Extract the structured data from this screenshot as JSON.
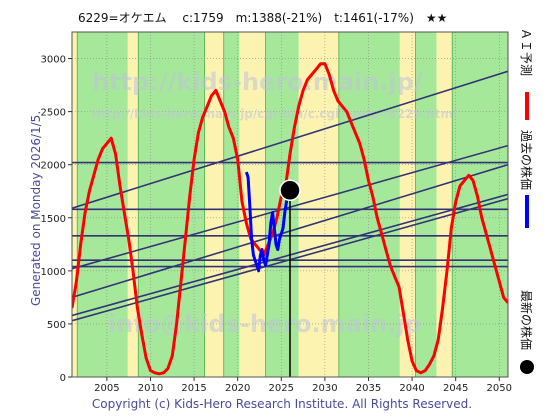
{
  "chart_data": {
    "type": "line",
    "title": "6229=オケエム　 c:1759　m:1388(-21%)　t:1461(-17%)　★★",
    "side_label": "Generated on Monday 2026/1/5.",
    "copyright": "Copyright (c) Kids-Hero Research Institute. All Rights Reserved.",
    "watermarks": [
      "http://kids-hero.main.jp/",
      "http://kids-hero.main.jp/cgi-bin/c.cgi?code=6229.html",
      "info@kids-hero.main.jp"
    ],
    "xlim": [
      2001,
      2051
    ],
    "ylim": [
      0,
      3250
    ],
    "x_ticks": [
      2005,
      2010,
      2015,
      2020,
      2025,
      2030,
      2035,
      2040,
      2045,
      2050
    ],
    "y_ticks": [
      0,
      500,
      1000,
      1500,
      2000,
      2500,
      3000
    ],
    "current_marker": {
      "x": 2026.0,
      "y": 1759
    },
    "legend": [
      {
        "label": "ＡＩ予測",
        "color": "#ff0000",
        "shape": "line"
      },
      {
        "label": "過去の株価",
        "color": "#0000ff",
        "shape": "line"
      },
      {
        "label": "最新の株価",
        "color": "#000000",
        "shape": "dot"
      }
    ],
    "colors": {
      "ai_line": "#ff0000",
      "past_line": "#0000ff",
      "trend_lines": "#333377",
      "band_green": "#a6e89a",
      "band_yellow": "#fdf3b0",
      "band_edge": "#2f9a2f"
    },
    "series": [
      {
        "name": "ＡＩ予測",
        "x": [
          2001.0,
          2001.5,
          2002.0,
          2002.5,
          2003.0,
          2003.5,
          2004.0,
          2004.5,
          2005.0,
          2005.5,
          2006.0,
          2006.5,
          2007.0,
          2007.5,
          2008.0,
          2008.5,
          2009.0,
          2009.5,
          2010.0,
          2010.5,
          2011.0,
          2011.5,
          2012.0,
          2012.5,
          2013.0,
          2013.5,
          2014.0,
          2014.5,
          2015.0,
          2015.5,
          2016.0,
          2016.5,
          2017.0,
          2017.5,
          2018.0,
          2018.5,
          2019.0,
          2019.5,
          2020.0,
          2020.5,
          2021.0,
          2021.5,
          2022.0,
          2022.5,
          2023.0,
          2023.5,
          2024.0,
          2024.5,
          2025.0,
          2025.5,
          2026.0,
          2026.5,
          2027.0,
          2027.5,
          2028.0,
          2028.5,
          2029.0,
          2029.5,
          2030.0,
          2030.5,
          2031.0,
          2031.5,
          2032.0,
          2032.5,
          2033.0,
          2033.5,
          2034.0,
          2034.5,
          2035.0,
          2035.5,
          2036.0,
          2036.5,
          2037.0,
          2037.5,
          2038.0,
          2038.5,
          2039.0,
          2039.5,
          2040.0,
          2040.5,
          2041.0,
          2041.5,
          2042.0,
          2042.5,
          2043.0,
          2043.5,
          2044.0,
          2044.5,
          2045.0,
          2045.5,
          2046.0,
          2046.5,
          2047.0,
          2047.5,
          2048.0,
          2048.5,
          2049.0,
          2049.5,
          2050.0,
          2050.5,
          2051.0
        ],
        "y": [
          650,
          900,
          1250,
          1550,
          1750,
          1900,
          2050,
          2150,
          2200,
          2250,
          2100,
          1800,
          1550,
          1300,
          1000,
          650,
          400,
          180,
          60,
          40,
          30,
          40,
          80,
          200,
          500,
          900,
          1300,
          1700,
          2050,
          2300,
          2450,
          2550,
          2650,
          2700,
          2600,
          2500,
          2350,
          2250,
          2050,
          1650,
          1450,
          1300,
          1250,
          1200,
          1150,
          1250,
          1350,
          1500,
          1700,
          1800,
          2100,
          2350,
          2550,
          2700,
          2800,
          2850,
          2900,
          2950,
          2950,
          2850,
          2700,
          2600,
          2550,
          2500,
          2400,
          2300,
          2200,
          2050,
          1850,
          1700,
          1500,
          1350,
          1200,
          1050,
          950,
          850,
          600,
          350,
          150,
          60,
          40,
          60,
          120,
          200,
          350,
          650,
          1000,
          1400,
          1650,
          1800,
          1850,
          1900,
          1850,
          1700,
          1500,
          1350,
          1200,
          1050,
          900,
          750,
          700
        ]
      },
      {
        "name": "過去の株価",
        "x": [
          2021.0,
          2021.2,
          2021.4,
          2021.6,
          2021.8,
          2022.0,
          2022.2,
          2022.4,
          2022.6,
          2022.8,
          2023.0,
          2023.2,
          2023.4,
          2023.6,
          2023.8,
          2024.0,
          2024.2,
          2024.4,
          2024.6,
          2024.8,
          2025.0,
          2025.2,
          2025.4,
          2025.6,
          2025.8,
          2026.0
        ],
        "y": [
          1930,
          1880,
          1600,
          1300,
          1150,
          1100,
          1050,
          1000,
          1150,
          1200,
          1100,
          1050,
          1150,
          1250,
          1450,
          1550,
          1400,
          1250,
          1200,
          1300,
          1350,
          1400,
          1550,
          1650,
          1800,
          1759
        ]
      }
    ],
    "trend_lines": [
      {
        "x": [
          2001,
          2051
        ],
        "y": [
          2020,
          2020
        ]
      },
      {
        "x": [
          2001,
          2051
        ],
        "y": [
          1580,
          1580
        ]
      },
      {
        "x": [
          2001,
          2051
        ],
        "y": [
          1330,
          1330
        ]
      },
      {
        "x": [
          2001,
          2051
        ],
        "y": [
          1100,
          1100
        ]
      },
      {
        "x": [
          2001,
          2051
        ],
        "y": [
          1040,
          1040
        ]
      },
      {
        "x": [
          2001,
          2051
        ],
        "y": [
          1590,
          2880
        ]
      },
      {
        "x": [
          2001,
          2051
        ],
        "y": [
          1020,
          2180
        ]
      },
      {
        "x": [
          2001,
          2051
        ],
        "y": [
          750,
          2000
        ]
      },
      {
        "x": [
          2001,
          2051
        ],
        "y": [
          580,
          1720
        ]
      },
      {
        "x": [
          2001,
          2051
        ],
        "y": [
          530,
          1680
        ]
      }
    ]
  }
}
